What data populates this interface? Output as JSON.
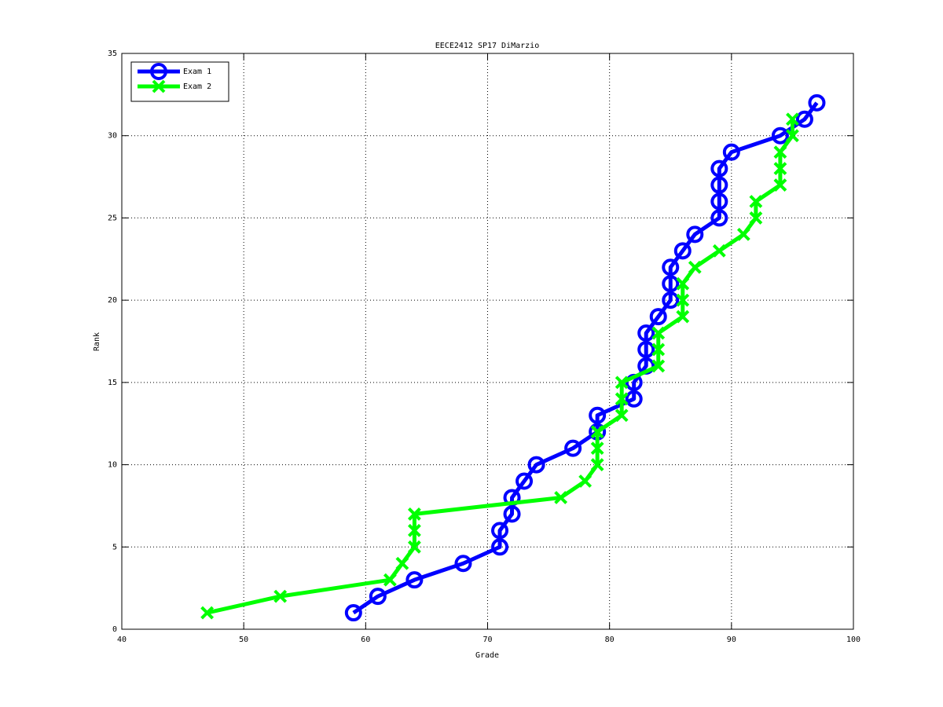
{
  "chart_data": {
    "type": "line",
    "title": "EECE2412 SP17 DiMarzio",
    "x_label": "Grade",
    "y_label": "Rank",
    "xlim": [
      40,
      100
    ],
    "xticks": [
      40,
      50,
      60,
      70,
      80,
      90,
      100
    ],
    "ylim": [
      0,
      35
    ],
    "yticks": [
      0,
      5,
      10,
      15,
      20,
      25,
      30,
      35
    ],
    "grid": true,
    "legend": "upper left",
    "series": [
      {
        "name": "Exam 1",
        "color": "#0000ff",
        "marker": "o",
        "x": [
          59,
          61,
          64,
          68,
          71,
          71,
          72,
          72,
          73,
          74,
          77,
          79,
          79,
          82,
          82,
          83,
          83,
          83,
          84,
          85,
          85,
          85,
          86,
          87,
          89,
          89,
          89,
          89,
          90,
          94,
          96,
          97
        ],
        "values": [
          1,
          2,
          3,
          4,
          5,
          6,
          7,
          8,
          9,
          10,
          11,
          12,
          13,
          14,
          15,
          16,
          17,
          18,
          19,
          20,
          21,
          22,
          23,
          24,
          25,
          26,
          27,
          28,
          29,
          30,
          31,
          32
        ]
      },
      {
        "name": "Exam 2",
        "color": "#00ff00",
        "marker": "x",
        "x": [
          47,
          53,
          62,
          63,
          64,
          64,
          64,
          76,
          78,
          79,
          79,
          79,
          81,
          81,
          81,
          84,
          84,
          84,
          86,
          86,
          86,
          87,
          89,
          91,
          92,
          92,
          94,
          94,
          94,
          95,
          95
        ],
        "values": [
          1,
          2,
          3,
          4,
          5,
          6,
          7,
          8,
          9,
          10,
          11,
          12,
          13,
          14,
          15,
          16,
          17,
          18,
          19,
          20,
          21,
          22,
          23,
          24,
          25,
          26,
          27,
          28,
          29,
          30,
          31
        ]
      }
    ]
  }
}
